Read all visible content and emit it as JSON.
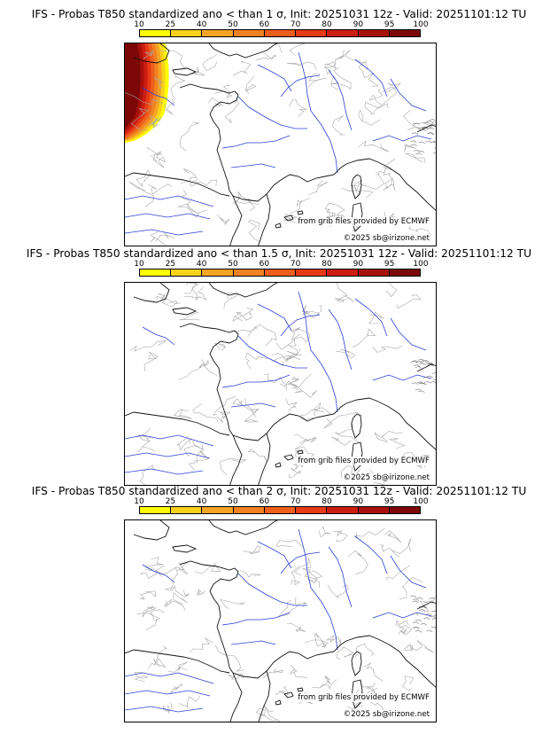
{
  "colorbar": {
    "ticks": [
      "10",
      "25",
      "40",
      "50",
      "60",
      "70",
      "80",
      "90",
      "95",
      "100"
    ],
    "colors": [
      "#ffff00",
      "#f9d21b",
      "#f4a423",
      "#f28121",
      "#ee5f1c",
      "#e63b14",
      "#cc1d12",
      "#a8100c",
      "#7b0807"
    ]
  },
  "panels": [
    {
      "title": "IFS - Probas T850  standardized ano < than 1 σ, Init: 20251031 12z - Valid: 20251101:12 TU",
      "source_credit": "from grib files provided by ECMWF",
      "copyright": "©2025 sb@irizone.net",
      "has_anomaly": true
    },
    {
      "title": "IFS - Probas T850  standardized ano < than 1.5 σ, Init: 20251031 12z - Valid: 20251101:12 TU",
      "source_credit": "from grib files provided by ECMWF",
      "copyright": "©2025 sb@irizone.net",
      "has_anomaly": false
    },
    {
      "title": "IFS - Probas T850  standardized ano < than 2 σ, Init: 20251031 12z - Valid: 20251101:12 TU",
      "source_credit": "from grib files provided by ECMWF",
      "copyright": "©2025 sb@irizone.net",
      "has_anomaly": false
    }
  ]
}
